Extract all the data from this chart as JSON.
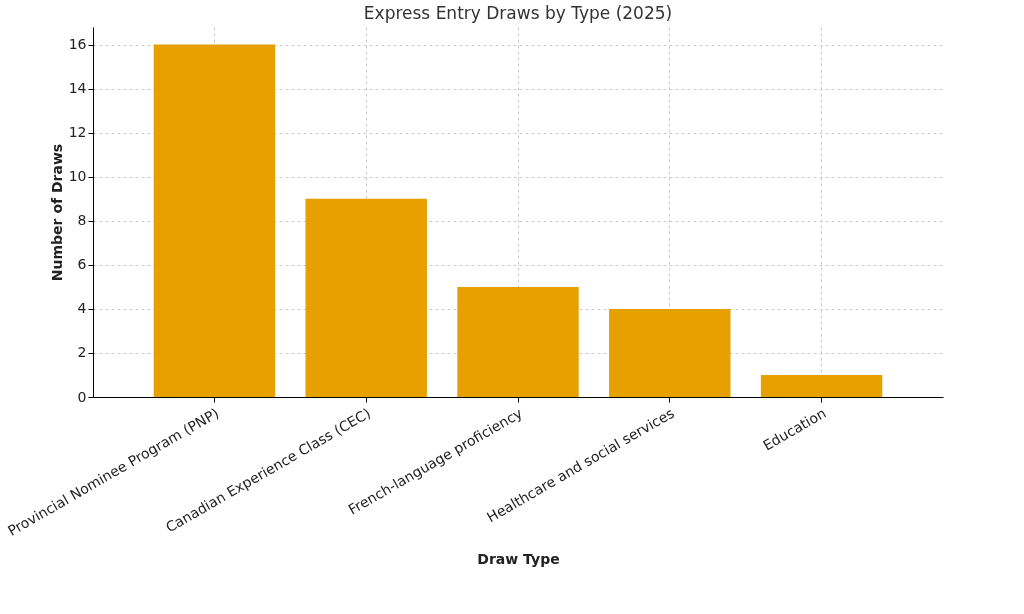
{
  "chart_data": {
    "type": "bar",
    "title": "Express Entry Draws by Type (2025)",
    "xlabel": "Draw Type",
    "ylabel": "Number of Draws",
    "categories": [
      "Provincial Nominee Program (PNP)",
      "Canadian Experience Class (CEC)",
      "French-language proficiency",
      "Healthcare and social services",
      "Education"
    ],
    "values": [
      16,
      9,
      5,
      4,
      1
    ],
    "color": "#e6a000",
    "ylim": [
      0,
      16.8
    ],
    "yticks": [
      0,
      2,
      4,
      6,
      8,
      10,
      12,
      14,
      16
    ],
    "grid": true
  }
}
